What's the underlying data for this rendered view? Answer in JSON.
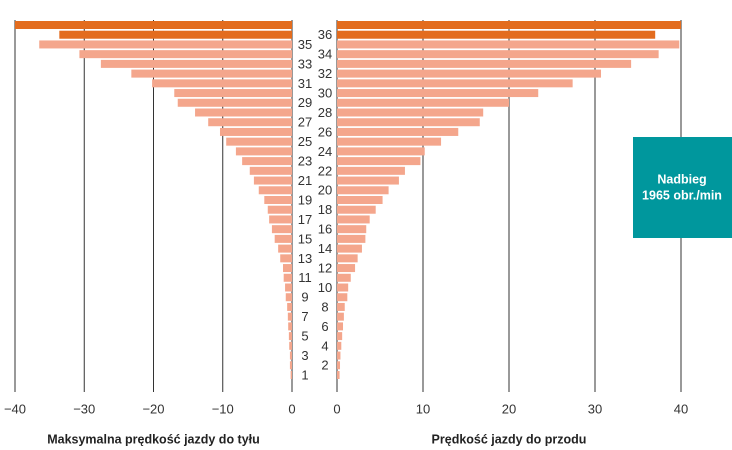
{
  "chart_data": [
    {
      "type": "hbar",
      "xlabel": "Maksymalna prędkość jazdy do tyłu",
      "categories": [
        null,
        "36",
        "35",
        "34",
        "33",
        "32",
        "31",
        "30",
        "29",
        "28",
        "27",
        "26",
        "25",
        "24",
        "23",
        "22",
        "21",
        "20",
        "19",
        "18",
        "17",
        "16",
        "15",
        "14",
        "13",
        "12",
        "11",
        "10",
        "9",
        "8",
        "7",
        "6",
        "5",
        "4",
        "3",
        "2",
        "1"
      ],
      "values": [
        -40,
        -33.6,
        -36.5,
        -30.7,
        -27.6,
        -23.2,
        -20.2,
        -17,
        -16.5,
        -14,
        -12.1,
        -10.4,
        -9.5,
        -8.1,
        -7.2,
        -6.1,
        -5.5,
        -4.8,
        -4.0,
        -3.5,
        -3.3,
        -2.9,
        -2.5,
        -2.0,
        -1.7,
        -1.3,
        -1.2,
        -1.0,
        -0.9,
        -0.7,
        -0.6,
        -0.55,
        -0.45,
        -0.4,
        -0.3,
        -0.3,
        -0.2
      ],
      "bar_colors": [
        "#e36c1e",
        "#e36c1e",
        "#f4a68c",
        "#f4a68c",
        "#f4a68c",
        "#f4a68c",
        "#f4a68c",
        "#f4a68c",
        "#f4a68c",
        "#f4a68c",
        "#f4a68c",
        "#f4a68c",
        "#f4a68c",
        "#f4a68c",
        "#f4a68c",
        "#f4a68c",
        "#f4a68c",
        "#f4a68c",
        "#f4a68c",
        "#f4a68c",
        "#f4a68c",
        "#f4a68c",
        "#f4a68c",
        "#f4a68c",
        "#f4a68c",
        "#f4a68c",
        "#f4a68c",
        "#f4a68c",
        "#f4a68c",
        "#f4a68c",
        "#f4a68c",
        "#f4a68c",
        "#f4a68c",
        "#f4a68c",
        "#f4a68c",
        "#f4a68c",
        "#f4a68c"
      ],
      "xlim": [
        -40,
        0
      ],
      "xticks": [
        {
          "value": -40,
          "label": "−40"
        },
        {
          "value": -30,
          "label": "−30"
        },
        {
          "value": -20,
          "label": "−20"
        },
        {
          "value": -10,
          "label": "−10"
        },
        0
      ],
      "grid": true
    },
    {
      "type": "hbar",
      "xlabel": "Prędkość jazdy do przodu",
      "values": [
        40,
        37,
        39.8,
        37.4,
        34.2,
        30.7,
        27.4,
        23.4,
        20,
        17,
        16.6,
        14.1,
        12.1,
        10.2,
        9.7,
        7.9,
        7.2,
        6.0,
        5.3,
        4.5,
        3.8,
        3.4,
        3.3,
        2.9,
        2.4,
        2.1,
        1.6,
        1.3,
        1.2,
        0.9,
        0.8,
        0.7,
        0.6,
        0.5,
        0.4,
        0.35,
        0.3
      ],
      "bar_colors": [
        "#e36c1e",
        "#e36c1e",
        "#f4a68c",
        "#f4a68c",
        "#f4a68c",
        "#f4a68c",
        "#f4a68c",
        "#f4a68c",
        "#f4a68c",
        "#f4a68c",
        "#f4a68c",
        "#f4a68c",
        "#f4a68c",
        "#f4a68c",
        "#f4a68c",
        "#f4a68c",
        "#f4a68c",
        "#f4a68c",
        "#f4a68c",
        "#f4a68c",
        "#f4a68c",
        "#f4a68c",
        "#f4a68c",
        "#f4a68c",
        "#f4a68c",
        "#f4a68c",
        "#f4a68c",
        "#f4a68c",
        "#f4a68c",
        "#f4a68c",
        "#f4a68c",
        "#f4a68c",
        "#f4a68c",
        "#f4a68c",
        "#f4a68c",
        "#f4a68c",
        "#f4a68c"
      ],
      "xlim": [
        0,
        40
      ],
      "xticks": [
        0,
        10,
        20,
        30,
        40
      ],
      "grid": true,
      "annotation": [
        "Nadbieg",
        "1965 obr./min"
      ],
      "annotation_color": "#00979d"
    }
  ]
}
